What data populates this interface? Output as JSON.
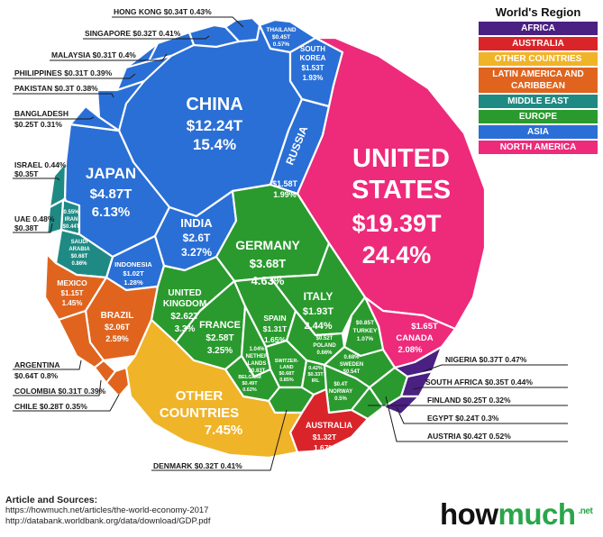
{
  "legend": {
    "title": "World's Region",
    "items": [
      {
        "label": "AFRICA",
        "color": "#4a2082"
      },
      {
        "label": "AUSTRALIA",
        "color": "#d9252a"
      },
      {
        "label": "OTHER COUNTRIES",
        "color": "#f0b429"
      },
      {
        "label": "LATIN AMERICA AND CARIBBEAN",
        "color": "#e0641e"
      },
      {
        "label": "MIDDLE EAST",
        "color": "#1f8a84"
      },
      {
        "label": "EUROPE",
        "color": "#2a9a2e"
      },
      {
        "label": "ASIA",
        "color": "#2a6fd6"
      },
      {
        "label": "NORTH AMERICA",
        "color": "#ee2a7b"
      }
    ]
  },
  "chart_data": {
    "type": "voronoi-treemap",
    "title": "",
    "unit": "GDP (US$ trillions), share of world GDP",
    "countries": [
      {
        "name": "UNITED STATES",
        "region": "NORTH AMERICA",
        "gdp": "$19.39T",
        "share": "24.4%"
      },
      {
        "name": "CANADA",
        "region": "NORTH AMERICA",
        "gdp": "$1.65T",
        "share": "2.08%"
      },
      {
        "name": "CHINA",
        "region": "ASIA",
        "gdp": "$12.24T",
        "share": "15.4%"
      },
      {
        "name": "JAPAN",
        "region": "ASIA",
        "gdp": "$4.87T",
        "share": "6.13%"
      },
      {
        "name": "INDIA",
        "region": "ASIA",
        "gdp": "$2.6T",
        "share": "3.27%"
      },
      {
        "name": "RUSSIA",
        "region": "ASIA",
        "gdp": "$1.58T",
        "share": "1.99%"
      },
      {
        "name": "SOUTH KOREA",
        "region": "ASIA",
        "gdp": "$1.53T",
        "share": "1.93%"
      },
      {
        "name": "INDONESIA",
        "region": "ASIA",
        "gdp": "$1.02T",
        "share": "1.28%"
      },
      {
        "name": "THAILAND",
        "region": "ASIA",
        "gdp": "$0.45T",
        "share": "0.57%"
      },
      {
        "name": "HONG KONG",
        "region": "ASIA",
        "gdp": "$0.34T",
        "share": "0.43%"
      },
      {
        "name": "SINGAPORE",
        "region": "ASIA",
        "gdp": "$0.32T",
        "share": "0.41%"
      },
      {
        "name": "MALAYSIA",
        "region": "ASIA",
        "gdp": "$0.31T",
        "share": "0.4%"
      },
      {
        "name": "PHILIPPINES",
        "region": "ASIA",
        "gdp": "$0.31T",
        "share": "0.39%"
      },
      {
        "name": "PAKISTAN",
        "region": "ASIA",
        "gdp": "$0.3T",
        "share": "0.38%"
      },
      {
        "name": "BANGLADESH",
        "region": "ASIA",
        "gdp": "$0.25T",
        "share": "0.31%"
      },
      {
        "name": "GERMANY",
        "region": "EUROPE",
        "gdp": "$3.68T",
        "share": "4.63%"
      },
      {
        "name": "UNITED KINGDOM",
        "region": "EUROPE",
        "gdp": "$2.62T",
        "share": "3.3%"
      },
      {
        "name": "FRANCE",
        "region": "EUROPE",
        "gdp": "$2.58T",
        "share": "3.25%"
      },
      {
        "name": "ITALY",
        "region": "EUROPE",
        "gdp": "$1.93T",
        "share": "2.44%"
      },
      {
        "name": "SPAIN",
        "region": "EUROPE",
        "gdp": "$1.31T",
        "share": "1.65%"
      },
      {
        "name": "NETHERLANDS",
        "region": "EUROPE",
        "gdp": "",
        "share": "1.04%"
      },
      {
        "name": "TURKEY",
        "region": "EUROPE",
        "gdp": "$0.85T",
        "share": "1.07%"
      },
      {
        "name": "SWITZERLAND",
        "region": "EUROPE",
        "gdp": "$0.68T",
        "share": "0.85%"
      },
      {
        "name": "POLAND",
        "region": "EUROPE",
        "gdp": "$0.52T",
        "share": "0.66%"
      },
      {
        "name": "SWEDEN",
        "region": "EUROPE",
        "gdp": "$0.54T",
        "share": "0.68%"
      },
      {
        "name": "BELGIUM",
        "region": "EUROPE",
        "gdp": "$0.49T",
        "share": "0.62%"
      },
      {
        "name": "AUSTRIA",
        "region": "EUROPE",
        "gdp": "$0.42T",
        "share": "0.52%"
      },
      {
        "name": "NORWAY",
        "region": "EUROPE",
        "gdp": "$0.4T",
        "share": "0.5%"
      },
      {
        "name": "IRELAND",
        "region": "EUROPE",
        "gdp": "$0.33T",
        "share": "0.42%"
      },
      {
        "name": "DENMARK",
        "region": "EUROPE",
        "gdp": "$0.32T",
        "share": "0.41%"
      },
      {
        "name": "FINLAND",
        "region": "EUROPE",
        "gdp": "$0.25T",
        "share": "0.32%"
      },
      {
        "name": "SAUDI ARABIA",
        "region": "MIDDLE EAST",
        "gdp": "$0.68T",
        "share": "0.86%"
      },
      {
        "name": "IRAN",
        "region": "MIDDLE EAST",
        "gdp": "$0.44T",
        "share": "0.55%"
      },
      {
        "name": "UAE",
        "region": "MIDDLE EAST",
        "gdp": "$0.38T",
        "share": "0.48%"
      },
      {
        "name": "ISRAEL",
        "region": "MIDDLE EAST",
        "gdp": "$0.35T",
        "share": "0.44%"
      },
      {
        "name": "BRAZIL",
        "region": "LATIN AMERICA AND CARIBBEAN",
        "gdp": "$2.06T",
        "share": "2.59%"
      },
      {
        "name": "MEXICO",
        "region": "LATIN AMERICA AND CARIBBEAN",
        "gdp": "$1.15T",
        "share": "1.45%"
      },
      {
        "name": "ARGENTINA",
        "region": "LATIN AMERICA AND CARIBBEAN",
        "gdp": "$0.64T",
        "share": "0.8%"
      },
      {
        "name": "COLOMBIA",
        "region": "LATIN AMERICA AND CARIBBEAN",
        "gdp": "$0.31T",
        "share": "0.39%"
      },
      {
        "name": "CHILE",
        "region": "LATIN AMERICA AND CARIBBEAN",
        "gdp": "$0.28T",
        "share": "0.35%"
      },
      {
        "name": "AUSTRALIA",
        "region": "AUSTRALIA",
        "gdp": "$1.32T",
        "share": "1.67%"
      },
      {
        "name": "NIGERIA",
        "region": "AFRICA",
        "gdp": "$0.37T",
        "share": "0.47%"
      },
      {
        "name": "SOUTH AFRICA",
        "region": "AFRICA",
        "gdp": "$0.35T",
        "share": "0.44%"
      },
      {
        "name": "EGYPT",
        "region": "AFRICA",
        "gdp": "$0.24T",
        "share": "0.3%"
      },
      {
        "name": "OTHER COUNTRIES",
        "region": "OTHER COUNTRIES",
        "gdp": "",
        "share": "7.45%"
      }
    ]
  },
  "labels": {
    "us_name_1": "UNITED",
    "us_name_2": "STATES",
    "us_gdp": "$19.39T",
    "us_share": "24.4%",
    "china_name": "CHINA",
    "china_gdp": "$12.24T",
    "china_share": "15.4%",
    "japan_name": "JAPAN",
    "japan_gdp": "$4.87T",
    "japan_share": "6.13%",
    "india_name": "INDIA",
    "india_gdp": "$2.6T",
    "india_share": "3.27%",
    "russia_name": "RUSSIA",
    "russia_gdp": "$1.58T",
    "russia_share": "1.99%",
    "korea_name_1": "SOUTH",
    "korea_name_2": "KOREA",
    "korea_gdp": "$1.53T",
    "korea_share": "1.93%",
    "thailand_name": "THAILAND",
    "thailand_gdp": "$0.45T",
    "thailand_share": "0.57%",
    "indonesia_name": "INDONESIA",
    "indonesia_gdp": "$1.02T",
    "indonesia_share": "1.28%",
    "germany_name": "GERMANY",
    "germany_gdp": "$3.68T",
    "germany_share": "4.63%",
    "uk_name_1": "UNITED",
    "uk_name_2": "KINGDOM",
    "uk_gdp": "$2.62T",
    "uk_share": "3.3%",
    "france_name": "FRANCE",
    "france_gdp": "$2.58T",
    "france_share": "3.25%",
    "italy_name": "ITALY",
    "italy_gdp": "$1.93T",
    "italy_share": "2.44%",
    "spain_name": "SPAIN",
    "spain_gdp": "$1.31T",
    "spain_share": "1.65%",
    "neth_share": "1.04%",
    "neth_name_1": "NETHER",
    "neth_name_2": "LANDS",
    "neth_gdp": "$0.83T",
    "turkey_gdp": "$0.85T",
    "turkey_name": "TURKEY",
    "turkey_share": "1.07%",
    "poland_gdp": "$0.52T",
    "poland_name": "POLAND",
    "poland_share": "0.66%",
    "sweden_share": "0.68%",
    "sweden_name": "SWEDEN",
    "sweden_gdp": "$0.54T",
    "switz_name_1": "SWITZER-",
    "switz_name_2": "LAND",
    "switz_gdp": "$0.68T",
    "switz_share": "0.85%",
    "ireland_share": "0.42%",
    "ireland_gdp": "$0.33T",
    "ireland_name": "IRL",
    "belgium_name": "BELGIUM",
    "belgium_gdp": "$0.49T",
    "belgium_share": "0.62%",
    "norway_gdp": "$0.4T",
    "norway_name": "NORWAY",
    "norway_share": "0.5%",
    "iran_share": "0.55%",
    "iran_name": "IRAN",
    "iran_gdp": "$0.44T",
    "saudi_name_1": "SAUDI",
    "saudi_name_2": "ARABIA",
    "saudi_gdp": "$0.68T",
    "saudi_share": "0.86%",
    "mexico_name": "MEXICO",
    "mexico_gdp": "$1.15T",
    "mexico_share": "1.45%",
    "brazil_name": "BRAZIL",
    "brazil_gdp": "$2.06T",
    "brazil_share": "2.59%",
    "other_name_1": "OTHER",
    "other_name_2": "COUNTRIES",
    "other_share": "7.45%",
    "canada_gdp": "$1.65T",
    "canada_name": "CANADA",
    "canada_share": "2.08%",
    "australia_name": "AUSTRALIA",
    "australia_gdp": "$1.32T",
    "australia_share": "1.67%"
  },
  "external_labels": {
    "hongkong": "HONG KONG $0.34T 0.43%",
    "singapore": "SINGAPORE $0.32T 0.41%",
    "malaysia": "MALAYSIA $0.31T 0.4%",
    "philippines": "PHILIPPINES $0.31T 0.39%",
    "pakistan": "PAKISTAN $0.3T 0.38%",
    "bangladesh_1": "BANGLADESH",
    "bangladesh_2": "$0.25T 0.31%",
    "israel_1": "ISRAEL 0.44%",
    "israel_2": "$0.35T",
    "uae_1": "UAE 0.48%",
    "uae_2": "$0.38T",
    "argentina_1": "ARGENTINA",
    "argentina_2": "$0.64T 0.8%",
    "colombia": "COLOMBIA $0.31T 0.39%",
    "chile": "CHILE $0.28T 0.35%",
    "denmark": "DENMARK $0.32T 0.41%",
    "nigeria": "NIGERIA $0.37T 0.47%",
    "southafrica": "SOUTH AFRICA $0.35T 0.44%",
    "finland": "FINLAND $0.25T  0.32%",
    "egypt": "EGYPT $0.24T  0.3%",
    "austria": "AUSTRIA $0.42T  0.52%"
  },
  "sources": {
    "title": "Article and Sources:",
    "line1": "https://howmuch.net/articles/the-world-economy-2017",
    "line2": "http://databank.worldbank.org/data/download/GDP.pdf"
  },
  "brand": {
    "part1": "how",
    "part2": "much",
    "suffix": ".net"
  }
}
